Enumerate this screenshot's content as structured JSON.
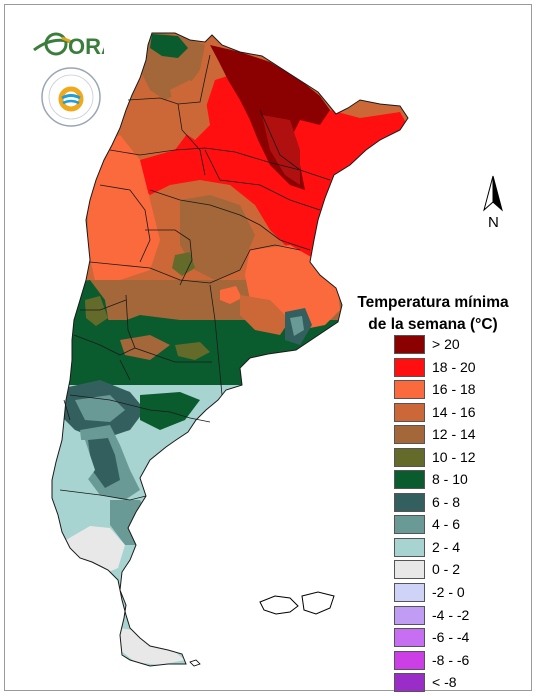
{
  "logos": {
    "ora_text": "ORA",
    "smn_ring_text": "SERVICIO METEOROLÓGICO NACIONAL",
    "smn_bottom_text": "ARGENTINA"
  },
  "north_arrow": {
    "label": "N"
  },
  "legend": {
    "title_line1": "Temperatura mínima",
    "title_line2": "de la semana (°C)",
    "items": [
      {
        "label": "> 20",
        "color": "#8b0000"
      },
      {
        "label": "18 - 20",
        "color": "#ff0f0f"
      },
      {
        "label": "16 - 18",
        "color": "#fb6a3c"
      },
      {
        "label": "14 - 16",
        "color": "#cc6838"
      },
      {
        "label": "12 - 14",
        "color": "#a3673a"
      },
      {
        "label": "10 - 12",
        "color": "#646b2a"
      },
      {
        "label": "8 - 10",
        "color": "#0a5c2e"
      },
      {
        "label": "6 - 8",
        "color": "#33605e"
      },
      {
        "label": "4 - 6",
        "color": "#6a9a96"
      },
      {
        "label": "2 - 4",
        "color": "#a7d4d0"
      },
      {
        "label": "0 - 2",
        "color": "#e8e8e8"
      },
      {
        "label": "-2 - 0",
        "color": "#cfd3f8"
      },
      {
        "label": "-4 - -2",
        "color": "#c09cf5"
      },
      {
        "label": "-6 - -4",
        "color": "#c66ff2"
      },
      {
        "label": "-8 - -6",
        "color": "#cc3ee6"
      },
      {
        "label": "< -8",
        "color": "#9a2cc8"
      }
    ]
  }
}
